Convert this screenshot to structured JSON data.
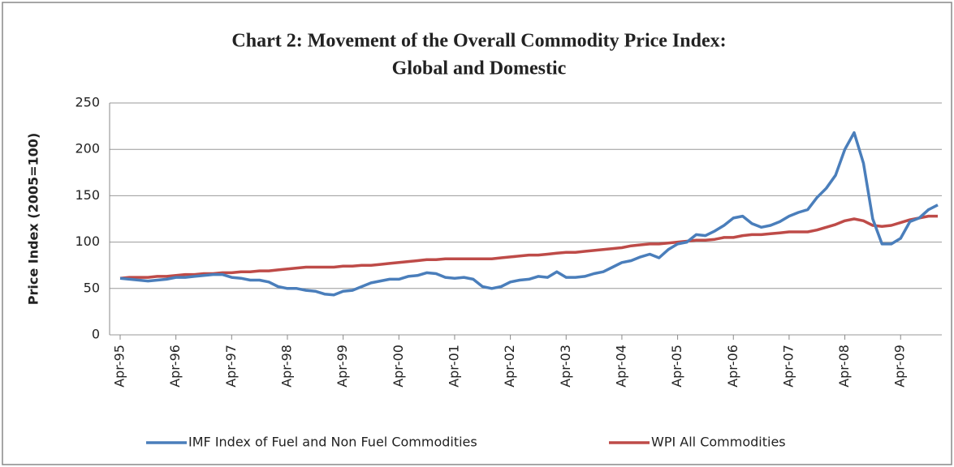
{
  "chart_data": {
    "type": "line",
    "title": [
      "Chart 2: Movement of the Overall Commodity Price Index:",
      "Global and Domestic"
    ],
    "y_label": "Price Index (2005=100)",
    "categories": [
      "Apr-95",
      null,
      null,
      null,
      null,
      null,
      "Apr-96",
      null,
      null,
      null,
      null,
      null,
      "Apr-97",
      null,
      null,
      null,
      null,
      null,
      "Apr-98",
      null,
      null,
      null,
      null,
      null,
      "Apr-99",
      null,
      null,
      null,
      null,
      null,
      "Apr-00",
      null,
      null,
      null,
      null,
      null,
      "Apr-01",
      null,
      null,
      null,
      null,
      null,
      "Apr-02",
      null,
      null,
      null,
      null,
      null,
      "Apr-03",
      null,
      null,
      null,
      null,
      null,
      "Apr-04",
      null,
      null,
      null,
      null,
      null,
      "Apr-05",
      null,
      null,
      null,
      null,
      null,
      "Apr-06",
      null,
      null,
      null,
      null,
      null,
      "Apr-07",
      null,
      null,
      null,
      null,
      null,
      "Apr-08",
      null,
      null,
      null,
      null,
      null,
      "Apr-09",
      null,
      null,
      null,
      null
    ],
    "series": [
      {
        "name": "IMF Index of Fuel and Non Fuel Commodities",
        "color": "#4a7ebb",
        "values": [
          61,
          60,
          59,
          58,
          59,
          60,
          62,
          62,
          63,
          64,
          65,
          65,
          62,
          61,
          59,
          59,
          57,
          52,
          50,
          50,
          48,
          47,
          44,
          43,
          47,
          48,
          52,
          56,
          58,
          60,
          60,
          63,
          64,
          67,
          66,
          62,
          61,
          62,
          60,
          52,
          50,
          52,
          57,
          59,
          60,
          63,
          62,
          68,
          62,
          62,
          63,
          66,
          68,
          73,
          78,
          80,
          84,
          87,
          83,
          92,
          98,
          100,
          108,
          107,
          112,
          118,
          126,
          128,
          120,
          116,
          118,
          122,
          128,
          132,
          135,
          148,
          158,
          172,
          200,
          218,
          185,
          125,
          98,
          98,
          104,
          122,
          126,
          135,
          140
        ]
      },
      {
        "name": "WPI All Commodities",
        "color": "#be4b48",
        "values": [
          61,
          62,
          62,
          62,
          63,
          63,
          64,
          65,
          65,
          66,
          66,
          67,
          67,
          68,
          68,
          69,
          69,
          70,
          71,
          72,
          73,
          73,
          73,
          73,
          74,
          74,
          75,
          75,
          76,
          77,
          78,
          79,
          80,
          81,
          81,
          82,
          82,
          82,
          82,
          82,
          82,
          83,
          84,
          85,
          86,
          86,
          87,
          88,
          89,
          89,
          90,
          91,
          92,
          93,
          94,
          96,
          97,
          98,
          98,
          99,
          100,
          101,
          102,
          102,
          103,
          105,
          105,
          107,
          108,
          108,
          109,
          110,
          111,
          111,
          111,
          113,
          116,
          119,
          123,
          125,
          123,
          118,
          117,
          118,
          121,
          124,
          126,
          128,
          128
        ]
      }
    ],
    "ylim": [
      0,
      250
    ],
    "yticks": [
      0,
      50,
      100,
      150,
      200,
      250
    ],
    "grid": true,
    "legend": "bottom"
  }
}
